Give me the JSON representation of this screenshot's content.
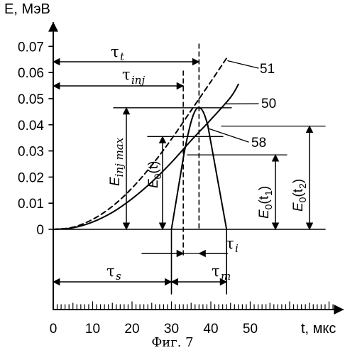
{
  "caption": "Фиг. 7",
  "chart_data": {
    "type": "line",
    "y_axis_title": "E, МэВ",
    "x_axis_title": "t, мкс",
    "xlim": [
      0,
      52
    ],
    "ylim": [
      0,
      0.075
    ],
    "x_ticks": [
      "0",
      "10",
      "20",
      "30",
      "40",
      "50"
    ],
    "y_ticks": [
      "0",
      "0.01",
      "0.02",
      "0.03",
      "0.04",
      "0.05",
      "0.06",
      "0.07"
    ],
    "series": [
      {
        "name": "51",
        "style": "dashed",
        "x": [
          0,
          5,
          10,
          15,
          20,
          25,
          30,
          35,
          40,
          44
        ],
        "y": [
          0,
          0.0008,
          0.0038,
          0.0088,
          0.0158,
          0.0245,
          0.0345,
          0.0455,
          0.0565,
          0.0655
        ]
      },
      {
        "name": "50",
        "style": "solid",
        "x": [
          0,
          5,
          10,
          15,
          20,
          25,
          30,
          35,
          40,
          45,
          47
        ],
        "y": [
          0,
          0.0006,
          0.0028,
          0.0065,
          0.0117,
          0.0181,
          0.0256,
          0.034,
          0.042,
          0.0505,
          0.0555
        ]
      },
      {
        "name": "58",
        "style": "solid",
        "x": [
          30,
          33,
          35,
          37,
          39,
          44
        ],
        "y": [
          0,
          0.029,
          0.043,
          0.0465,
          0.04,
          0
        ]
      }
    ],
    "annotations": {
      "tau_t": "τ",
      "tau_t_sub": "t",
      "tau_inj": "τ",
      "tau_inj_sub": "inj",
      "tau_s": "τ",
      "tau_s_sub": "s",
      "tau_m": "τ",
      "tau_m_sub": "m",
      "tau_i": "τ",
      "tau_i_sub": "i",
      "e_inj_max": "E",
      "e_inj_max_sub": "inj max",
      "e0_t": "E",
      "e0_t_rest": "(t)",
      "e0_t1": "E",
      "e0_t1_rest": "(t",
      "e0_t2": "E",
      "e0_t2_rest": "(t",
      "sub_zero": "0",
      "sub_one": "1",
      "sub_two": "2",
      "close_paren": ")"
    }
  }
}
